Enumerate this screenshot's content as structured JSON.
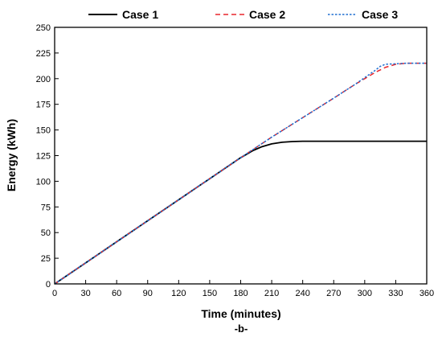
{
  "chart_data": {
    "type": "line",
    "caption": "-b-",
    "xlabel": "Time (minutes)",
    "ylabel": "Energy (kWh)",
    "xlim": [
      0,
      360
    ],
    "ylim": [
      0,
      250
    ],
    "xticks": [
      0,
      30,
      60,
      90,
      120,
      150,
      180,
      210,
      240,
      270,
      300,
      330,
      360
    ],
    "yticks": [
      0,
      25,
      50,
      75,
      100,
      125,
      150,
      175,
      200,
      225,
      250
    ],
    "grid": false,
    "legend_position": "top",
    "series": [
      {
        "name": "Case 1",
        "color": "#000000",
        "line_style": "solid",
        "x": [
          0,
          30,
          60,
          90,
          120,
          150,
          180,
          192,
          200,
          210,
          220,
          230,
          240,
          255,
          270,
          300,
          330,
          360
        ],
        "y": [
          0,
          20.5,
          41,
          61.5,
          82,
          102.5,
          123,
          130,
          133.5,
          136.5,
          138,
          138.7,
          139,
          139,
          139,
          139,
          139,
          139
        ]
      },
      {
        "name": "Case 2",
        "color": "#e8262b",
        "line_style": "dashed",
        "x": [
          0,
          30,
          60,
          90,
          120,
          150,
          180,
          192,
          210,
          240,
          270,
          290,
          300,
          310,
          320,
          330,
          340,
          350,
          360
        ],
        "y": [
          0,
          20.5,
          41,
          61.5,
          82,
          102.5,
          123,
          131,
          143,
          162,
          181,
          194,
          200,
          206,
          211,
          214,
          215,
          215,
          215
        ]
      },
      {
        "name": "Case 3",
        "color": "#1f6fd1",
        "line_style": "dotted",
        "x": [
          0,
          30,
          60,
          90,
          120,
          150,
          180,
          192,
          210,
          240,
          270,
          290,
          300,
          310,
          315,
          320,
          330,
          340,
          350,
          360
        ],
        "y": [
          0,
          20.5,
          41,
          61.5,
          82,
          102.5,
          123,
          131,
          143,
          162,
          181,
          194,
          201,
          208,
          212,
          214,
          214.5,
          215,
          215,
          215
        ]
      }
    ]
  }
}
